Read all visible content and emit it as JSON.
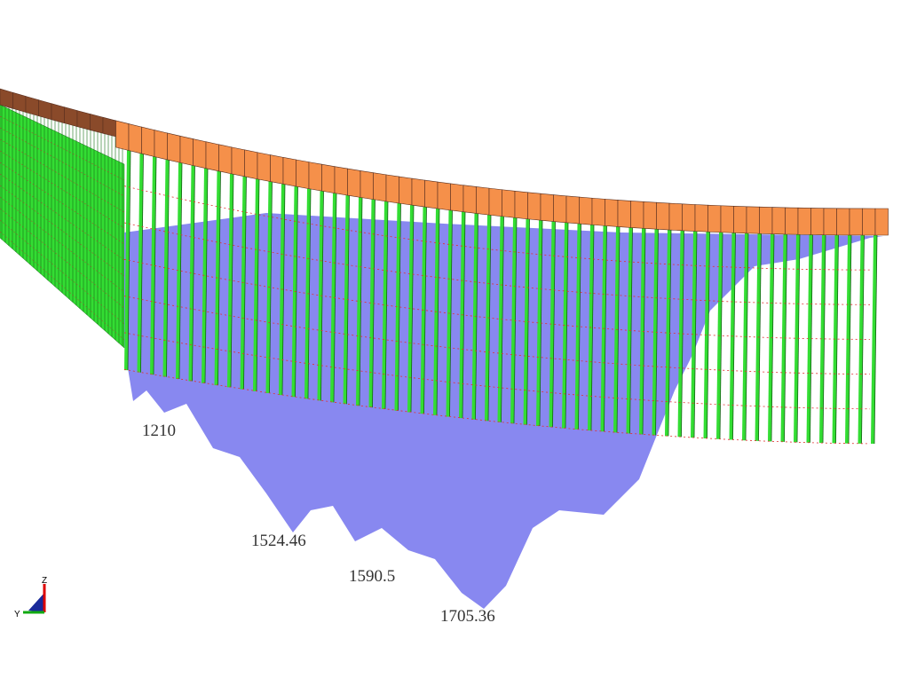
{
  "labels": [
    {
      "text": "1210"
    },
    {
      "text": "1524.46"
    },
    {
      "text": "1590.5"
    },
    {
      "text": "1705.36"
    }
  ],
  "axes": {
    "z": "Z",
    "y": "Y"
  }
}
